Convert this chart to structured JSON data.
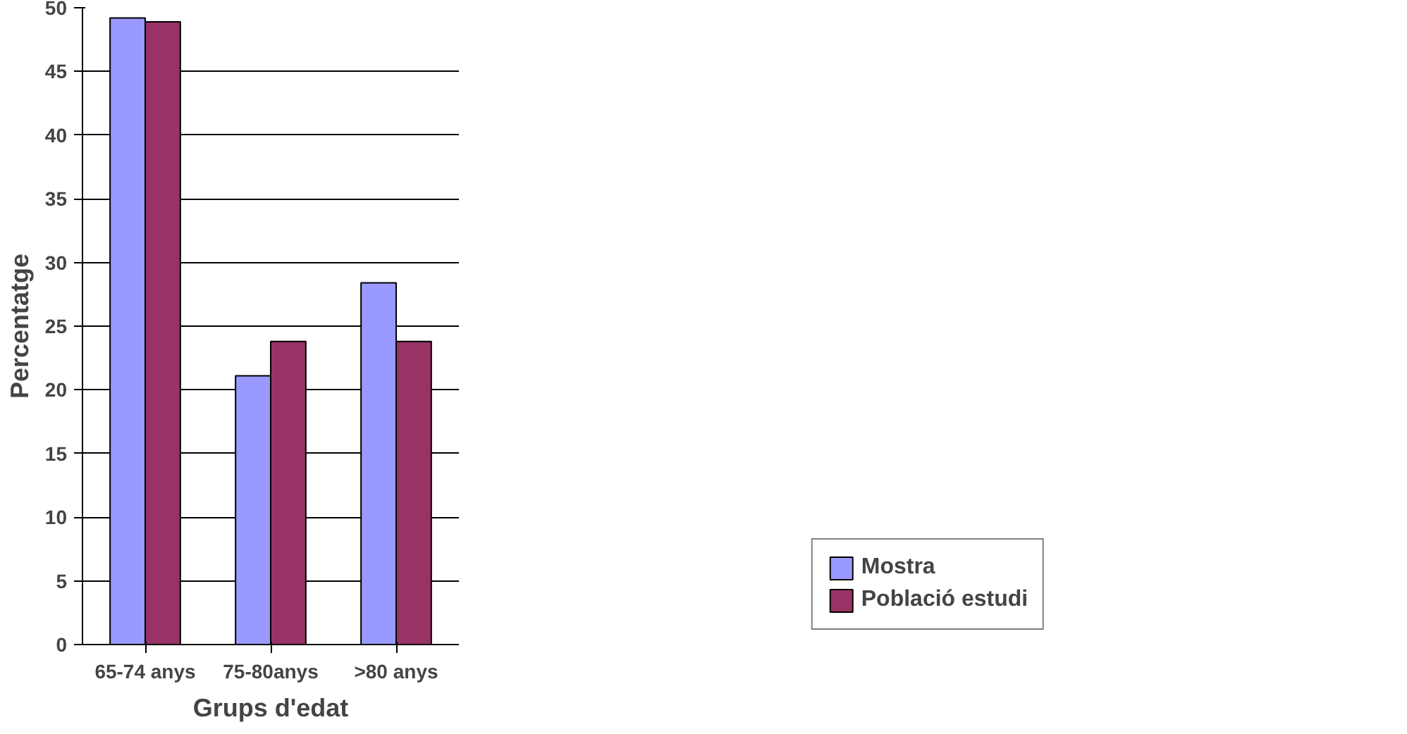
{
  "chart_data": {
    "type": "bar",
    "xlabel": "Grups d'edat",
    "ylabel": "Percentatge",
    "categories": [
      "65-74 anys",
      "75-80anys",
      ">80 anys"
    ],
    "series": [
      {
        "name": "Mostra",
        "color": "#9999ff",
        "values": [
          49.2,
          21.1,
          28.4
        ]
      },
      {
        "name": "Població estudi",
        "color": "#993366",
        "values": [
          48.9,
          23.8,
          23.8
        ]
      }
    ],
    "ylim": [
      0,
      50
    ],
    "yticks": [
      0,
      5,
      10,
      15,
      20,
      25,
      30,
      35,
      40,
      45,
      50
    ],
    "grid": "y",
    "legend": "bottom right"
  }
}
